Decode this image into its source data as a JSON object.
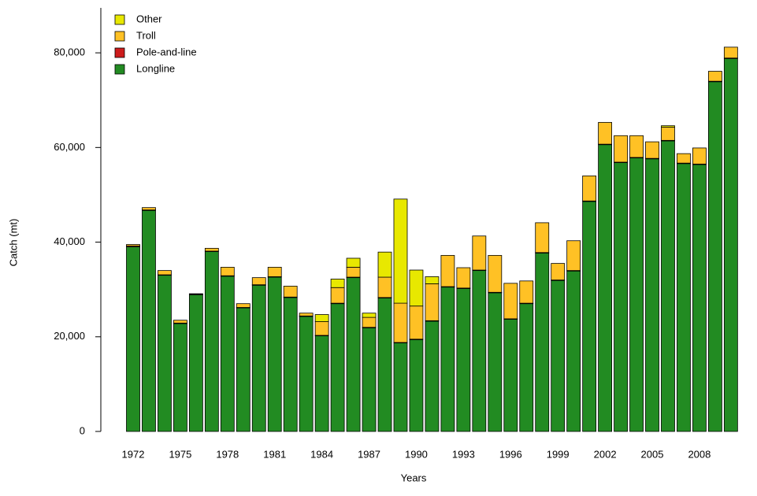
{
  "chart_data": {
    "type": "stacked-bar",
    "x_label": "Years",
    "y_label": "Catch (mt)",
    "categories": [
      "1972",
      null,
      null,
      "1975",
      null,
      null,
      "1978",
      null,
      null,
      "1981",
      null,
      null,
      "1984",
      null,
      null,
      "1987",
      null,
      null,
      "1990",
      null,
      null,
      "1993",
      null,
      null,
      "1996",
      null,
      null,
      "1999",
      null,
      null,
      "2002",
      null,
      null,
      "2005",
      null,
      null,
      "2008",
      null,
      null
    ],
    "ylim": [
      0,
      89500
    ],
    "yticks": [
      0,
      {
        "value": 20000,
        "label": "20,000"
      },
      {
        "value": 40000,
        "label": "40,000"
      },
      {
        "value": 60000,
        "label": "60,000"
      },
      {
        "value": 80000,
        "label": "80,000"
      }
    ],
    "legend_position": "top-left",
    "series": [
      {
        "name": "Longline",
        "color": "#228b22",
        "values": [
          39000,
          46700,
          33000,
          22800,
          28900,
          38000,
          32800,
          26100,
          30900,
          32600,
          28300,
          24300,
          20200,
          27000,
          32500,
          21900,
          28200,
          18700,
          19400,
          23300,
          30500,
          30200,
          34000,
          29300,
          23700,
          27000,
          37700,
          31900,
          33900,
          48600,
          60600,
          56800,
          57800,
          57600,
          61400,
          56600,
          56400,
          73900,
          78800
        ]
      },
      {
        "name": "Pole-and-line",
        "color": "#cd1c1c",
        "values": [
          200,
          100,
          100,
          100,
          100,
          100,
          100,
          100,
          100,
          100,
          100,
          100,
          100,
          100,
          100,
          100,
          100,
          100,
          100,
          100,
          100,
          100,
          100,
          100,
          100,
          100,
          100,
          100,
          100,
          100,
          100,
          100,
          100,
          100,
          100,
          100,
          100,
          100,
          100
        ]
      },
      {
        "name": "Troll",
        "color": "#ffc125",
        "values": [
          300,
          500,
          900,
          600,
          100,
          600,
          1800,
          800,
          1500,
          2000,
          2300,
          600,
          2900,
          3300,
          2100,
          2100,
          4300,
          8300,
          7000,
          7800,
          6600,
          4300,
          7200,
          7800,
          7500,
          4700,
          6300,
          3500,
          6300,
          5300,
          4600,
          5600,
          4600,
          3500,
          2800,
          2000,
          3400,
          2100,
          2300
        ]
      },
      {
        "name": "Other",
        "color": "#e8e800",
        "values": [
          0,
          0,
          0,
          0,
          0,
          0,
          0,
          0,
          0,
          0,
          0,
          0,
          1500,
          1800,
          1900,
          900,
          5300,
          22000,
          7600,
          1500,
          0,
          0,
          0,
          0,
          0,
          0,
          0,
          0,
          0,
          0,
          0,
          0,
          0,
          0,
          300,
          0,
          0,
          0,
          0
        ]
      }
    ]
  }
}
